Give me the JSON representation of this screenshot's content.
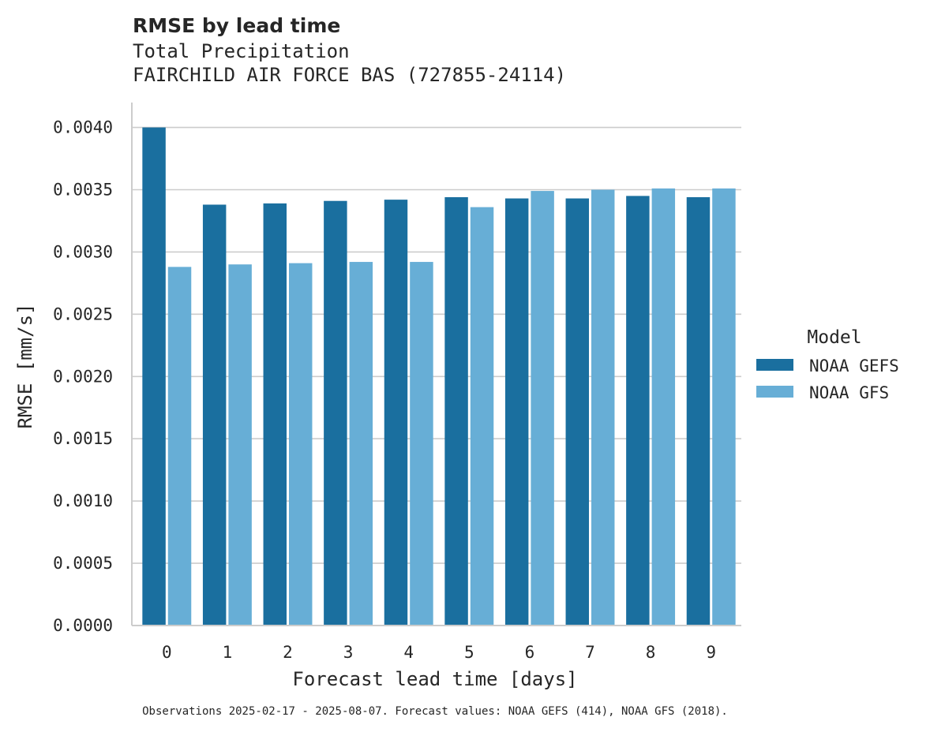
{
  "chart_data": {
    "type": "bar",
    "title": "RMSE by lead time",
    "subtitle_lines": [
      "Total Precipitation",
      "FAIRCHILD AIR FORCE BAS (727855-24114)"
    ],
    "xlabel": "Forecast lead time [days]",
    "ylabel": "RMSE [mm/s]",
    "categories": [
      "0",
      "1",
      "2",
      "3",
      "4",
      "5",
      "6",
      "7",
      "8",
      "9"
    ],
    "series": [
      {
        "name": "NOAA GEFS",
        "color": "#1a6f9f",
        "values": [
          0.004,
          0.00338,
          0.00339,
          0.00341,
          0.00342,
          0.00344,
          0.00343,
          0.00343,
          0.00345,
          0.00344
        ]
      },
      {
        "name": "NOAA GFS",
        "color": "#67aed6",
        "values": [
          0.00288,
          0.0029,
          0.00291,
          0.00292,
          0.00292,
          0.00336,
          0.00349,
          0.0035,
          0.00351,
          0.00351
        ]
      }
    ],
    "ylim": [
      0,
      0.0042
    ],
    "yticks": [
      0.0,
      0.0005,
      0.001,
      0.0015,
      0.002,
      0.0025,
      0.003,
      0.0035,
      0.004
    ],
    "ytick_labels": [
      "0.0000",
      "0.0005",
      "0.0010",
      "0.0015",
      "0.0020",
      "0.0025",
      "0.0030",
      "0.0035",
      "0.0040"
    ],
    "grid": "y",
    "legend": {
      "title": "Model",
      "placement": "right",
      "entries": [
        "NOAA GEFS",
        "NOAA GFS"
      ]
    },
    "footnote": "Observations 2025-02-17 - 2025-08-07. Forecast values: NOAA GEFS (414), NOAA GFS (2018)."
  }
}
